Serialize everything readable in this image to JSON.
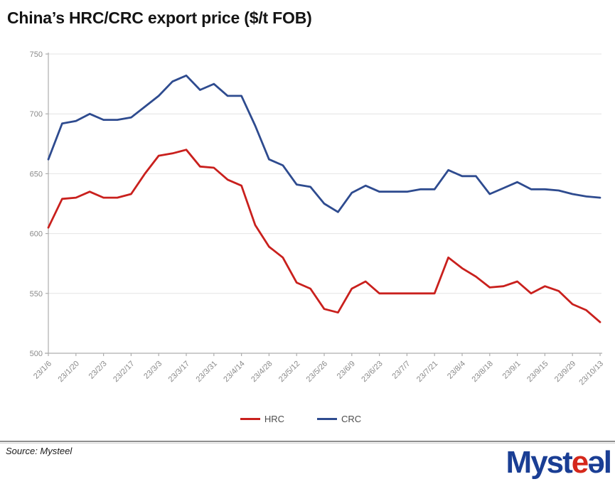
{
  "title": "China’s HRC/CRC export price ($/t FOB)",
  "source_note": "Source: Mysteel",
  "logo": {
    "parts": [
      {
        "text": "Myst",
        "color": "#1A3E94"
      },
      {
        "text": "e",
        "color": "#D5281B"
      },
      {
        "text": "ə",
        "color": "#1A3E94"
      },
      {
        "text": "l",
        "color": "#1A3E94"
      }
    ]
  },
  "legend": {
    "items": [
      {
        "label": "HRC",
        "color": "#C9201D"
      },
      {
        "label": "CRC",
        "color": "#2E4B8F"
      }
    ]
  },
  "chart_data": {
    "type": "line",
    "title": "China’s HRC/CRC export price ($/t FOB)",
    "x": [
      "23/1/6",
      "23/1/13",
      "23/1/20",
      "23/1/27",
      "23/2/3",
      "23/2/10",
      "23/2/17",
      "23/2/24",
      "23/3/3",
      "23/3/10",
      "23/3/17",
      "23/3/24",
      "23/3/31",
      "23/4/7",
      "23/4/14",
      "23/4/21",
      "23/4/28",
      "23/5/5",
      "23/5/12",
      "23/5/19",
      "23/5/26",
      "23/6/2",
      "23/6/9",
      "23/6/16",
      "23/6/23",
      "23/6/30",
      "23/7/7",
      "23/7/14",
      "23/7/21",
      "23/7/28",
      "23/8/4",
      "23/8/11",
      "23/8/18",
      "23/8/25",
      "23/9/1",
      "23/9/8",
      "23/9/15",
      "23/9/22",
      "23/9/29",
      "23/10/6",
      "23/10/13"
    ],
    "x_tick_labels": [
      "23/1/6",
      "23/1/20",
      "23/2/3",
      "23/2/17",
      "23/3/3",
      "23/3/17",
      "23/3/31",
      "23/4/14",
      "23/4/28",
      "23/5/12",
      "23/5/26",
      "23/6/9",
      "23/6/23",
      "23/7/7",
      "23/7/21",
      "23/8/4",
      "23/8/18",
      "23/9/1",
      "23/9/15",
      "23/9/29",
      "23/10/13"
    ],
    "series": [
      {
        "name": "HRC",
        "color": "#C9201D",
        "values": [
          605,
          629,
          630,
          635,
          630,
          630,
          633,
          650,
          665,
          667,
          670,
          656,
          655,
          645,
          640,
          607,
          589,
          580,
          559,
          554,
          537,
          534,
          554,
          560,
          550,
          550,
          550,
          550,
          550,
          580,
          571,
          564,
          555,
          556,
          560,
          550,
          556,
          552,
          541,
          536,
          526
        ]
      },
      {
        "name": "CRC",
        "color": "#2E4B8F",
        "values": [
          662,
          692,
          694,
          700,
          695,
          695,
          697,
          706,
          715,
          727,
          732,
          720,
          725,
          715,
          715,
          690,
          662,
          657,
          641,
          639,
          625,
          618,
          634,
          640,
          635,
          635,
          635,
          637,
          637,
          653,
          648,
          648,
          633,
          638,
          643,
          637,
          637,
          636,
          633,
          631,
          630
        ]
      }
    ],
    "ylim": [
      500,
      750
    ],
    "yticks": [
      500,
      550,
      600,
      650,
      700,
      750
    ],
    "grid": "horizontal",
    "grid_color": "#E4E4E4",
    "axis_color": "#ADADAD",
    "tick_label_color": "#8A8A8A",
    "legend_position": "bottom",
    "xlabel": "",
    "ylabel": ""
  }
}
